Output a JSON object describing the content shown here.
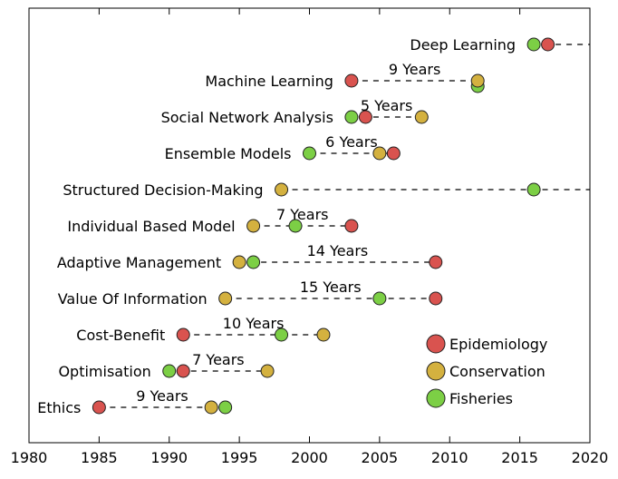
{
  "chart_data": {
    "type": "scatter",
    "title": "",
    "xlabel": "",
    "ylabel": "",
    "xlim": [
      1980,
      2020
    ],
    "xticks": [
      1980,
      1985,
      1990,
      1995,
      2000,
      2005,
      2010,
      2015,
      2020
    ],
    "grid": false,
    "legend_position": "lower-right",
    "series": [
      {
        "name": "Epidemiology",
        "color": "#d9534f"
      },
      {
        "name": "Conservation",
        "color": "#d4b13f"
      },
      {
        "name": "Fisheries",
        "color": "#7ccf45"
      }
    ],
    "topics": [
      {
        "label": "Deep Learning",
        "gap_label": "",
        "line": [
          2016,
          2020
        ],
        "points": [
          {
            "series": "Fisheries",
            "x": 2016
          },
          {
            "series": "Epidemiology",
            "x": 2017
          }
        ]
      },
      {
        "label": "Machine Learning",
        "gap_label": "9 Years",
        "line": [
          2003,
          2012
        ],
        "points": [
          {
            "series": "Epidemiology",
            "x": 2003
          },
          {
            "series": "Fisheries",
            "x": 2012,
            "offset": "below"
          },
          {
            "series": "Conservation",
            "x": 2012
          }
        ]
      },
      {
        "label": "Social Network Analysis",
        "gap_label": "5 Years",
        "line": [
          2003,
          2008
        ],
        "points": [
          {
            "series": "Fisheries",
            "x": 2003
          },
          {
            "series": "Epidemiology",
            "x": 2004
          },
          {
            "series": "Conservation",
            "x": 2008
          }
        ]
      },
      {
        "label": "Ensemble Models",
        "gap_label": "6 Years",
        "line": [
          2000,
          2006
        ],
        "points": [
          {
            "series": "Fisheries",
            "x": 2000
          },
          {
            "series": "Conservation",
            "x": 2005
          },
          {
            "series": "Epidemiology",
            "x": 2006
          }
        ]
      },
      {
        "label": "Structured Decision-Making",
        "gap_label": "",
        "line": [
          1998,
          2020
        ],
        "points": [
          {
            "series": "Conservation",
            "x": 1998
          },
          {
            "series": "Fisheries",
            "x": 2016
          }
        ]
      },
      {
        "label": "Individual Based Model",
        "gap_label": "7 Years",
        "line": [
          1996,
          2003
        ],
        "points": [
          {
            "series": "Conservation",
            "x": 1996
          },
          {
            "series": "Fisheries",
            "x": 1999
          },
          {
            "series": "Epidemiology",
            "x": 2003
          }
        ]
      },
      {
        "label": "Adaptive Management",
        "gap_label": "14 Years",
        "line": [
          1995,
          2009
        ],
        "points": [
          {
            "series": "Conservation",
            "x": 1995
          },
          {
            "series": "Fisheries",
            "x": 1996
          },
          {
            "series": "Epidemiology",
            "x": 2009
          }
        ]
      },
      {
        "label": "Value Of Information",
        "gap_label": "15 Years",
        "line": [
          1994,
          2009
        ],
        "points": [
          {
            "series": "Conservation",
            "x": 1994
          },
          {
            "series": "Fisheries",
            "x": 2005
          },
          {
            "series": "Epidemiology",
            "x": 2009
          }
        ]
      },
      {
        "label": "Cost-Benefit",
        "gap_label": "10 Years",
        "line": [
          1991,
          2001
        ],
        "points": [
          {
            "series": "Epidemiology",
            "x": 1991
          },
          {
            "series": "Fisheries",
            "x": 1998
          },
          {
            "series": "Conservation",
            "x": 2001
          }
        ]
      },
      {
        "label": "Optimisation",
        "gap_label": "7 Years",
        "line": [
          1990,
          1997
        ],
        "points": [
          {
            "series": "Fisheries",
            "x": 1990
          },
          {
            "series": "Epidemiology",
            "x": 1991
          },
          {
            "series": "Conservation",
            "x": 1997
          }
        ]
      },
      {
        "label": "Ethics",
        "gap_label": "9 Years",
        "line": [
          1985,
          1994
        ],
        "points": [
          {
            "series": "Epidemiology",
            "x": 1985
          },
          {
            "series": "Conservation",
            "x": 1993
          },
          {
            "series": "Fisheries",
            "x": 1994
          }
        ]
      }
    ]
  }
}
